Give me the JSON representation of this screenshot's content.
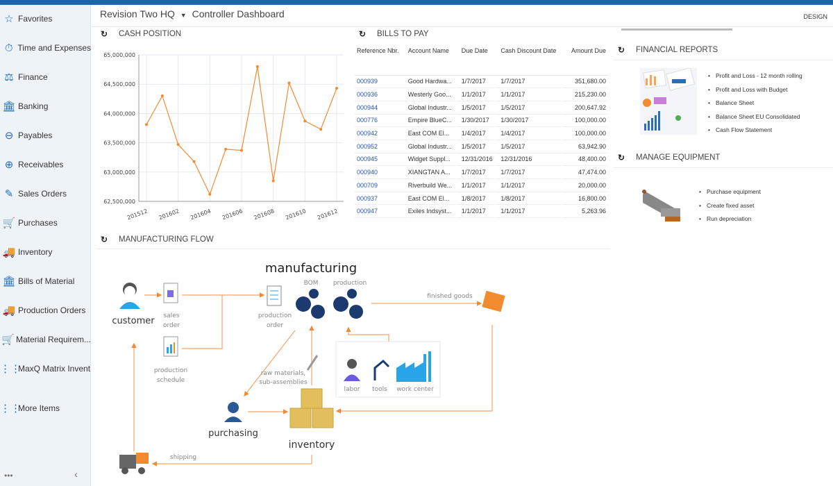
{
  "header": {
    "company": "Revision Two HQ",
    "dropdown_icon": "caret-down-icon",
    "page": "Controller Dashboard",
    "design_label": "DESIGN"
  },
  "sidebar": {
    "items": [
      {
        "label": "Favorites",
        "icon": "star-icon"
      },
      {
        "label": "Time and Expenses",
        "icon": "stopwatch-icon"
      },
      {
        "label": "Finance",
        "icon": "scales-icon"
      },
      {
        "label": "Banking",
        "icon": "bank-icon"
      },
      {
        "label": "Payables",
        "icon": "minus-circle-icon"
      },
      {
        "label": "Receivables",
        "icon": "plus-circle-icon"
      },
      {
        "label": "Sales Orders",
        "icon": "edit-icon"
      },
      {
        "label": "Purchases",
        "icon": "cart-icon"
      },
      {
        "label": "Inventory",
        "icon": "truck-icon"
      },
      {
        "label": "Bills of Material",
        "icon": "bank-icon"
      },
      {
        "label": "Production Orders",
        "icon": "truck-icon"
      },
      {
        "label": "Material Requirem...",
        "icon": "cart-plus-icon"
      },
      {
        "label": "MaxQ Matrix Invent...",
        "icon": "grid-icon"
      },
      {
        "label": "More Items",
        "icon": "grid-icon"
      }
    ],
    "more_dots": "•••",
    "collapse": "‹"
  },
  "cash_position": {
    "title": "CASH POSITION"
  },
  "chart_data": {
    "type": "line",
    "x": [
      "201512",
      "201601",
      "201602",
      "201603",
      "201604",
      "201605",
      "201606",
      "201607",
      "201608",
      "201609",
      "201610",
      "201611",
      "201612"
    ],
    "xticks": [
      "201512",
      "201602",
      "201604",
      "201606",
      "201608",
      "201610",
      "201612"
    ],
    "values": [
      63810000,
      64300000,
      63470000,
      63180000,
      62620000,
      63390000,
      63370000,
      64800000,
      62850000,
      64520000,
      63870000,
      63730000,
      64430000
    ],
    "ylim": [
      62500000,
      65000000
    ],
    "yticks": [
      "62,500,000",
      "63,000,000",
      "63,500,000",
      "64,000,000",
      "64,500,000",
      "65,000,000"
    ],
    "grid": true,
    "color": "#f28a30"
  },
  "bills": {
    "title": "BILLS TO PAY",
    "columns": [
      "Reference Nbr.",
      "Account Name",
      "Due Date",
      "Cash Discount Date",
      "Amount Due"
    ],
    "rows": [
      [
        "000939",
        "Good Hardwa...",
        "1/7/2017",
        "1/7/2017",
        "351,680.00"
      ],
      [
        "000936",
        "Westerly Goo...",
        "1/1/2017",
        "1/1/2017",
        "215,230.00"
      ],
      [
        "000944",
        "Global Industr...",
        "1/5/2017",
        "1/5/2017",
        "200,647.92"
      ],
      [
        "000776",
        "Empire BlueC...",
        "1/30/2017",
        "1/30/2017",
        "100,000.00"
      ],
      [
        "000942",
        "East COM El...",
        "1/4/2017",
        "1/4/2017",
        "100,000.00"
      ],
      [
        "000952",
        "Global Industr...",
        "1/5/2017",
        "1/5/2017",
        "63,942.90"
      ],
      [
        "000945",
        "Widget Suppl...",
        "12/31/2016",
        "12/31/2016",
        "48,400.00"
      ],
      [
        "000940",
        "XIANGTAN A...",
        "1/7/2017",
        "1/7/2017",
        "47,474.00"
      ],
      [
        "000709",
        "Riverbuild We...",
        "1/1/2017",
        "1/1/2017",
        "20,000.00"
      ],
      [
        "000937",
        "East COM El...",
        "1/8/2017",
        "1/8/2017",
        "16,800.00"
      ],
      [
        "000947",
        "Exiles Indsyst...",
        "1/1/2017",
        "1/1/2017",
        "5,263.96"
      ]
    ]
  },
  "financial_reports": {
    "title": "FINANCIAL REPORTS",
    "items": [
      "Profit and Loss - 12 month rolling",
      "Profit and Loss with Budget",
      "Balance Sheet",
      "Balance Sheet EU Consolidated",
      "Cash Flow Statement"
    ]
  },
  "manage_equipment": {
    "title": "MANAGE EQUIPMENT",
    "items": [
      "Purchase equipment",
      "Create fixed asset",
      "Run depreciation"
    ]
  },
  "manufacturing_flow": {
    "title": "MANUFACTURING FLOW",
    "labels": {
      "manufacturing": "manufacturing",
      "bom": "BOM",
      "production": "production",
      "customer": "customer",
      "sales1": "sales",
      "sales2": "order",
      "sched1": "production",
      "sched2": "schedule",
      "porder1": "production",
      "porder2": "order",
      "finished": "finished goods",
      "raw1": "raw materials,",
      "raw2": "sub-assemblies",
      "labor": "labor",
      "tools": "tools",
      "work_center": "work center",
      "purchasing": "purchasing",
      "inventory": "inventory",
      "shipping": "shipping"
    }
  },
  "refresh_icon": "refresh-icon"
}
